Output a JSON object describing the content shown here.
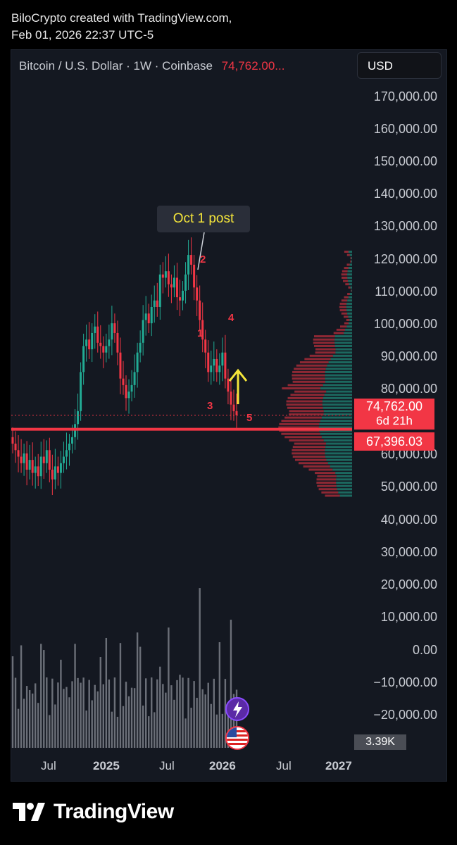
{
  "attribution": {
    "line1": "BiloCrypto created with TradingView.com,",
    "line2": "Feb 01, 2026 22:37 UTC-5"
  },
  "header": {
    "symbol_text": "Bitcoin / U.S. Dollar · 1W · Coinbase",
    "last_price": "74,762.00...",
    "currency_button": "USD"
  },
  "colors": {
    "up": "#22ab94",
    "down": "#f23645",
    "background": "#141821",
    "annotation": "#f5e63a"
  },
  "price_axis_labels": [
    "170,000.00",
    "160,000.00",
    "150,000.00",
    "140,000.00",
    "130,000.00",
    "120,000.00",
    "110,000.00",
    "100,000.00",
    "90,000.00",
    "80,000.00",
    "60,000.00",
    "50,000.00",
    "40,000.00",
    "30,000.00",
    "20,000.00",
    "10,000.00",
    "0.00",
    "−10,000.00",
    "−20,000.00"
  ],
  "price_tags": {
    "current_price": "74,762.00",
    "countdown": "6d 21h",
    "level_price": "67,396.03",
    "volume": "3.39K"
  },
  "time_axis": [
    "Jul",
    "2025",
    "Jul",
    "2026",
    "Jul",
    "2027"
  ],
  "annotations": {
    "callout": "Oct 1 post",
    "wave_labels": [
      "1",
      "2",
      "3",
      "4",
      "5"
    ]
  },
  "icons": [
    "tradingview-logo-icon",
    "lightning-badge-icon",
    "us-flag-icon"
  ],
  "brand": "TradingView",
  "chart_data": {
    "type": "candlestick",
    "interval": "1W",
    "ylim": [
      -20000,
      170000
    ],
    "x_ticks": [
      "Jul",
      "2025",
      "Jul",
      "2026",
      "Jul",
      "2027"
    ],
    "current_price": 74762.0,
    "horizontal_level": 67396.03,
    "closes_approx": [
      66000,
      64000,
      62000,
      60000,
      63000,
      58000,
      61000,
      57000,
      59000,
      56000,
      62000,
      60000,
      64000,
      58000,
      55000,
      59000,
      57000,
      60000,
      62000,
      64000,
      66000,
      68000,
      72000,
      76000,
      88000,
      96000,
      98000,
      95000,
      100000,
      102000,
      97000,
      96000,
      94000,
      96000,
      98000,
      103000,
      100000,
      94000,
      86000,
      84000,
      80000,
      82000,
      84000,
      88000,
      94000,
      97000,
      104000,
      106000,
      103000,
      108000,
      110000,
      108000,
      118000,
      117000,
      119000,
      115000,
      114000,
      117000,
      111000,
      110000,
      113000,
      118000,
      124000,
      121000,
      114000,
      110000,
      104000,
      98000,
      94000,
      88000,
      90000,
      92000,
      88000,
      90000,
      94000,
      86000,
      82000,
      78000,
      76000,
      74762
    ],
    "volume_profile": "horizontal volume-by-price histogram along right edge, 50,000–125,000",
    "annotations": [
      {
        "text": "Oct 1 post",
        "x": "Oct 2025",
        "y": 126000
      },
      {
        "text": "1",
        "y": 97000
      },
      {
        "text": "2",
        "y": 120000
      },
      {
        "text": "3",
        "y": 75000
      },
      {
        "text": "4",
        "y": 103000
      },
      {
        "text": "5",
        "y": 68000
      }
    ]
  }
}
